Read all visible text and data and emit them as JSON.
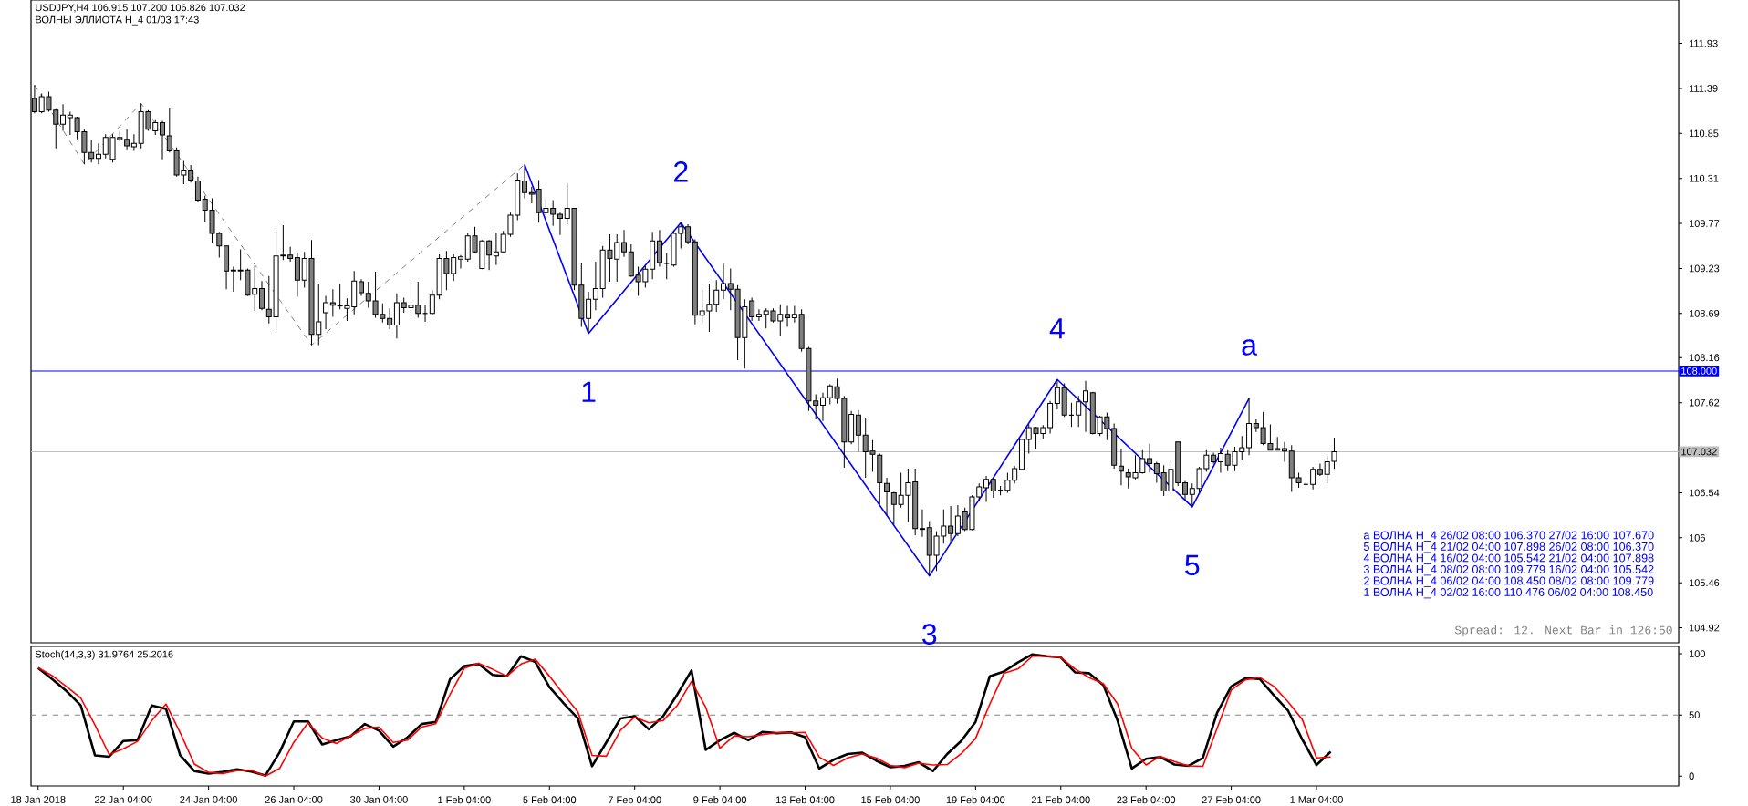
{
  "chart_data": [
    {
      "type": "candlestick",
      "title": "USDJPY,H4  106.915 107.200 106.826 107.032",
      "subtitle": "ВОЛНЫ ЭЛЛИОТА H_4 01/03 17:43",
      "categories": [
        null,
        null,
        null,
        null,
        null,
        null,
        null,
        null,
        null,
        null,
        null,
        null,
        null,
        null,
        null,
        null,
        null,
        null,
        null,
        null,
        null,
        null,
        null,
        null,
        null,
        null,
        null,
        null,
        null,
        null,
        null,
        null,
        null,
        null,
        null,
        null,
        null,
        null,
        null,
        null,
        null,
        null,
        null,
        null,
        null,
        null,
        null,
        null,
        null,
        null,
        null,
        null,
        null,
        null,
        null,
        null,
        null,
        null,
        null,
        null,
        null,
        null,
        null,
        null,
        null,
        null,
        null,
        null,
        null,
        null,
        null,
        null,
        null,
        null,
        null,
        null,
        null,
        null,
        null,
        null,
        null,
        null,
        null,
        null,
        null,
        null,
        null,
        null,
        null,
        null,
        null,
        null,
        null,
        null,
        null,
        null,
        null,
        null,
        null,
        null,
        null,
        null,
        null,
        null,
        null,
        null,
        null,
        null,
        null,
        null,
        null,
        null,
        null,
        null,
        null,
        null,
        null,
        null,
        null,
        null,
        null,
        null,
        null,
        null,
        null,
        null,
        null,
        null,
        null,
        null,
        null,
        null,
        null,
        null,
        null,
        null,
        null,
        null,
        null,
        null,
        null,
        null,
        null,
        null,
        null,
        null,
        null,
        null,
        null,
        null,
        null,
        null,
        null,
        null,
        null,
        null,
        null,
        null,
        null,
        null,
        null,
        null,
        null,
        null,
        null,
        null,
        null,
        null,
        null,
        null,
        null,
        null,
        null,
        null,
        null,
        null,
        null,
        null,
        null,
        null,
        null,
        null,
        null,
        null,
        null,
        null,
        null,
        null,
        null,
        null,
        null,
        null,
        null,
        null,
        null,
        null,
        null,
        null,
        null,
        null,
        null,
        null,
        null,
        null,
        null,
        null,
        null,
        null,
        null,
        null,
        null,
        null,
        null,
        null,
        null,
        null,
        null,
        null,
        null,
        null,
        null,
        null,
        null,
        null,
        null,
        null,
        null,
        null,
        null,
        null,
        null,
        null
      ],
      "ohlc": [
        [
          111.27,
          111.43,
          111.09,
          111.11
        ],
        [
          111.11,
          111.33,
          111.09,
          111.29
        ],
        [
          111.29,
          111.35,
          111.11,
          111.13
        ],
        [
          111.13,
          111.15,
          110.67,
          110.96
        ],
        [
          110.96,
          111.2,
          110.88,
          111.07
        ],
        [
          111.04,
          111.11,
          110.83,
          111.07
        ],
        [
          111.04,
          111.05,
          110.78,
          110.87
        ],
        [
          110.87,
          110.9,
          110.48,
          110.62
        ],
        [
          110.62,
          110.77,
          110.5,
          110.55
        ],
        [
          110.55,
          110.73,
          110.48,
          110.6
        ],
        [
          110.6,
          110.84,
          110.55,
          110.8
        ],
        [
          110.54,
          110.84,
          110.5,
          110.8
        ],
        [
          110.8,
          110.88,
          110.75,
          110.77
        ],
        [
          110.78,
          110.9,
          110.66,
          110.7
        ],
        [
          110.69,
          110.84,
          110.64,
          110.73
        ],
        [
          110.73,
          111.21,
          110.67,
          111.11
        ],
        [
          111.11,
          111.13,
          110.88,
          110.9
        ],
        [
          110.88,
          111.01,
          110.83,
          110.98
        ],
        [
          110.98,
          111.0,
          110.54,
          110.83
        ],
        [
          110.82,
          111.16,
          110.62,
          110.64
        ],
        [
          110.64,
          110.68,
          110.33,
          110.35
        ],
        [
          110.35,
          110.52,
          110.24,
          110.41
        ],
        [
          110.41,
          110.47,
          110.26,
          110.29
        ],
        [
          110.28,
          110.33,
          110.03,
          110.05
        ],
        [
          110.06,
          110.1,
          109.79,
          109.93
        ],
        [
          109.93,
          110.07,
          109.53,
          109.65
        ],
        [
          109.65,
          109.67,
          109.36,
          109.5
        ],
        [
          109.5,
          109.5,
          108.98,
          109.2
        ],
        [
          109.2,
          109.25,
          108.95,
          109.21
        ],
        [
          109.21,
          109.46,
          109.09,
          109.2
        ],
        [
          109.21,
          109.23,
          108.9,
          108.91
        ],
        [
          108.92,
          109.26,
          108.72,
          108.99
        ],
        [
          108.99,
          109.08,
          108.73,
          108.75
        ],
        [
          108.74,
          109.14,
          108.57,
          108.65
        ],
        [
          108.65,
          109.69,
          108.48,
          109.38
        ],
        [
          109.38,
          109.75,
          109.33,
          109.39
        ],
        [
          109.39,
          109.49,
          109.31,
          109.35
        ],
        [
          109.36,
          109.42,
          108.89,
          109.09
        ],
        [
          109.09,
          109.43,
          109.0,
          109.35
        ],
        [
          109.35,
          109.57,
          108.31,
          108.44
        ],
        [
          108.44,
          109.05,
          108.31,
          108.59
        ],
        [
          108.7,
          108.9,
          108.5,
          108.82
        ],
        [
          108.82,
          108.98,
          108.65,
          108.79
        ],
        [
          108.79,
          109.04,
          108.74,
          108.78
        ],
        [
          108.75,
          108.87,
          108.6,
          108.78
        ],
        [
          108.77,
          109.2,
          108.68,
          109.08
        ],
        [
          109.07,
          109.1,
          108.9,
          108.94
        ],
        [
          108.93,
          109.07,
          108.76,
          108.84
        ],
        [
          108.84,
          109.19,
          108.64,
          108.68
        ],
        [
          108.68,
          108.81,
          108.58,
          108.63
        ],
        [
          108.63,
          108.75,
          108.5,
          108.55
        ],
        [
          108.55,
          108.93,
          108.39,
          108.82
        ],
        [
          108.82,
          108.88,
          108.7,
          108.76
        ],
        [
          108.76,
          109.07,
          108.68,
          108.79
        ],
        [
          108.79,
          109.07,
          108.64,
          108.69
        ],
        [
          108.69,
          108.79,
          108.59,
          108.69
        ],
        [
          108.69,
          108.97,
          108.67,
          108.91
        ],
        [
          108.91,
          109.4,
          108.86,
          109.35
        ],
        [
          109.35,
          109.44,
          108.97,
          109.17
        ],
        [
          109.17,
          109.4,
          109.08,
          109.36
        ],
        [
          109.34,
          109.39,
          109.23,
          109.37
        ],
        [
          109.34,
          109.66,
          109.31,
          109.62
        ],
        [
          109.62,
          109.73,
          109.41,
          109.43
        ],
        [
          109.23,
          109.57,
          109.22,
          109.56
        ],
        [
          109.56,
          109.57,
          109.21,
          109.39
        ],
        [
          109.38,
          109.66,
          109.27,
          109.43
        ],
        [
          109.43,
          109.68,
          109.41,
          109.64
        ],
        [
          109.64,
          109.9,
          109.61,
          109.87
        ],
        [
          109.87,
          110.37,
          109.81,
          110.29
        ],
        [
          110.28,
          110.476,
          110.07,
          110.14
        ],
        [
          110.14,
          110.21,
          110.01,
          110.12
        ],
        [
          110.18,
          110.29,
          109.78,
          109.9
        ],
        [
          109.9,
          110.07,
          109.86,
          109.95
        ],
        [
          109.95,
          110.05,
          109.74,
          109.88
        ],
        [
          109.88,
          109.9,
          109.63,
          109.83
        ],
        [
          109.83,
          110.25,
          109.76,
          109.95
        ],
        [
          109.95,
          109.95,
          108.97,
          109.03
        ],
        [
          109.03,
          109.29,
          108.53,
          108.63
        ],
        [
          108.63,
          108.95,
          108.45,
          108.86
        ],
        [
          108.86,
          109.31,
          108.73,
          108.99
        ],
        [
          108.99,
          109.5,
          108.88,
          109.45
        ],
        [
          109.45,
          109.64,
          109.07,
          109.35
        ],
        [
          109.34,
          109.64,
          109.07,
          109.54
        ],
        [
          109.54,
          109.69,
          109.37,
          109.43
        ],
        [
          109.43,
          109.52,
          109.13,
          109.14
        ],
        [
          109.15,
          109.25,
          108.9,
          109.07
        ],
        [
          109.07,
          109.26,
          109.0,
          109.22
        ],
        [
          109.22,
          109.67,
          109.1,
          109.56
        ],
        [
          109.56,
          109.69,
          109.25,
          109.3
        ],
        [
          109.29,
          109.41,
          109.1,
          109.29
        ],
        [
          109.27,
          109.68,
          109.25,
          109.65
        ],
        [
          109.65,
          109.779,
          109.47,
          109.73
        ],
        [
          109.73,
          109.76,
          109.52,
          109.55
        ],
        [
          109.55,
          109.58,
          108.56,
          108.67
        ],
        [
          108.67,
          108.98,
          108.58,
          108.72
        ],
        [
          108.72,
          109.05,
          108.47,
          108.8
        ],
        [
          108.8,
          109.09,
          108.71,
          108.97
        ],
        [
          108.97,
          109.29,
          108.86,
          109.05
        ],
        [
          109.05,
          109.23,
          108.73,
          108.98
        ],
        [
          108.98,
          109.03,
          108.13,
          108.4
        ],
        [
          108.4,
          108.86,
          108.03,
          108.77
        ],
        [
          108.84,
          108.88,
          108.6,
          108.65
        ],
        [
          108.65,
          108.74,
          108.6,
          108.68
        ],
        [
          108.68,
          108.75,
          108.51,
          108.72
        ],
        [
          108.72,
          108.75,
          108.58,
          108.6
        ],
        [
          108.6,
          108.8,
          108.42,
          108.68
        ],
        [
          108.68,
          108.78,
          108.53,
          108.64
        ],
        [
          108.64,
          108.78,
          108.58,
          108.68
        ],
        [
          108.68,
          108.74,
          108.23,
          108.27
        ],
        [
          108.27,
          108.29,
          107.52,
          107.64
        ],
        [
          107.64,
          107.72,
          107.42,
          107.59
        ],
        [
          107.59,
          107.74,
          107.4,
          107.68
        ],
        [
          107.68,
          107.84,
          107.6,
          107.82
        ],
        [
          107.81,
          107.91,
          107.61,
          107.67
        ],
        [
          107.67,
          107.7,
          106.84,
          107.15
        ],
        [
          107.15,
          107.52,
          107.12,
          107.48
        ],
        [
          107.47,
          107.53,
          107.03,
          107.23
        ],
        [
          107.23,
          107.44,
          106.72,
          107.03
        ],
        [
          107.04,
          107.17,
          106.79,
          107.0
        ],
        [
          106.99,
          107.01,
          106.4,
          106.66
        ],
        [
          106.65,
          106.72,
          106.27,
          106.55
        ],
        [
          106.54,
          106.55,
          106.16,
          106.4
        ],
        [
          106.4,
          106.78,
          106.36,
          106.51
        ],
        [
          106.51,
          106.83,
          106.19,
          106.66
        ],
        [
          106.67,
          106.83,
          106.03,
          106.11
        ],
        [
          106.11,
          106.34,
          106.01,
          106.1
        ],
        [
          106.12,
          106.2,
          105.542,
          105.79
        ],
        [
          105.79,
          106.08,
          105.6,
          106.02
        ],
        [
          106.02,
          106.34,
          105.93,
          106.14
        ],
        [
          106.14,
          106.38,
          105.95,
          106.05
        ],
        [
          106.05,
          106.39,
          106.02,
          106.26
        ],
        [
          106.31,
          106.36,
          106.08,
          106.1
        ],
        [
          106.1,
          106.51,
          106.09,
          106.49
        ],
        [
          106.49,
          106.65,
          106.45,
          106.61
        ],
        [
          106.6,
          106.74,
          106.43,
          106.7
        ],
        [
          106.7,
          106.71,
          106.48,
          106.56
        ],
        [
          106.57,
          106.62,
          106.51,
          106.57
        ],
        [
          106.57,
          106.78,
          106.54,
          106.69
        ],
        [
          106.69,
          106.86,
          106.65,
          106.83
        ],
        [
          106.82,
          107.19,
          106.81,
          107.18
        ],
        [
          107.18,
          107.36,
          107.01,
          107.32
        ],
        [
          107.32,
          107.33,
          107.06,
          107.25
        ],
        [
          107.25,
          107.35,
          107.18,
          107.32
        ],
        [
          107.32,
          107.64,
          107.25,
          107.61
        ],
        [
          107.61,
          107.898,
          107.54,
          107.8
        ],
        [
          107.8,
          107.85,
          107.45,
          107.47
        ],
        [
          107.47,
          107.62,
          107.33,
          107.47
        ],
        [
          107.47,
          107.7,
          107.33,
          107.63
        ],
        [
          107.63,
          107.88,
          107.27,
          107.76
        ],
        [
          107.74,
          107.75,
          107.24,
          107.25
        ],
        [
          107.25,
          107.46,
          107.22,
          107.45
        ],
        [
          107.45,
          107.5,
          107.17,
          107.31
        ],
        [
          107.31,
          107.37,
          106.83,
          106.87
        ],
        [
          106.86,
          107.07,
          106.63,
          106.8
        ],
        [
          106.78,
          106.83,
          106.59,
          106.73
        ],
        [
          106.72,
          106.99,
          106.7,
          106.78
        ],
        [
          106.78,
          107.05,
          106.77,
          106.95
        ],
        [
          106.95,
          107.13,
          106.78,
          106.89
        ],
        [
          106.89,
          106.91,
          106.66,
          106.77
        ],
        [
          106.78,
          106.87,
          106.5,
          106.56
        ],
        [
          106.56,
          106.93,
          106.54,
          106.82
        ],
        [
          107.15,
          107.15,
          106.62,
          106.66
        ],
        [
          106.66,
          106.68,
          106.44,
          106.52
        ],
        [
          106.52,
          106.65,
          106.37,
          106.59
        ],
        [
          106.59,
          106.85,
          106.54,
          106.83
        ],
        [
          106.83,
          107.05,
          106.79,
          106.99
        ],
        [
          106.99,
          107.02,
          106.89,
          106.91
        ],
        [
          106.91,
          107.08,
          106.78,
          107.01
        ],
        [
          107.0,
          107.05,
          106.8,
          106.87
        ],
        [
          106.87,
          107.09,
          106.8,
          107.03
        ],
        [
          107.03,
          107.22,
          106.93,
          107.08
        ],
        [
          107.08,
          107.67,
          106.99,
          107.37
        ],
        [
          107.37,
          107.42,
          107.27,
          107.32
        ],
        [
          107.32,
          107.51,
          107.11,
          107.13
        ],
        [
          107.13,
          107.36,
          107.05,
          107.05
        ],
        [
          107.05,
          107.21,
          107.05,
          107.07
        ],
        [
          107.07,
          107.15,
          106.91,
          107.04
        ],
        [
          107.04,
          107.11,
          106.55,
          106.72
        ],
        [
          106.72,
          106.78,
          106.6,
          106.66
        ],
        [
          106.64,
          106.66,
          106.63,
          106.64
        ],
        [
          106.64,
          106.85,
          106.58,
          106.82
        ],
        [
          106.82,
          106.89,
          106.74,
          106.76
        ],
        [
          106.76,
          106.98,
          106.65,
          106.91
        ],
        [
          106.915,
          107.2,
          106.826,
          107.032
        ],
        null,
        null,
        null,
        null,
        null,
        null,
        null,
        null,
        null,
        null,
        null,
        null,
        null,
        null,
        null,
        null,
        null,
        null,
        null,
        null,
        null,
        null,
        null,
        null,
        null,
        null,
        null,
        null,
        null,
        null,
        null,
        null,
        null,
        null,
        null,
        null,
        null,
        null,
        null,
        null,
        null,
        null,
        null,
        null,
        null,
        null,
        null,
        null
      ],
      "series": [
        {
          "type": "line",
          "color": "#0000ff",
          "values": [
            null,
            null,
            null,
            null,
            null,
            null,
            null,
            null,
            null,
            null,
            null,
            null,
            null,
            null,
            null,
            null,
            null,
            null,
            null,
            null,
            null,
            null,
            null,
            null,
            null,
            null,
            null,
            null,
            null,
            null,
            null,
            null,
            null,
            null,
            null,
            null,
            null,
            null,
            null,
            null,
            null,
            null,
            null,
            null,
            null,
            null,
            null,
            null,
            null,
            null,
            null,
            null,
            null,
            null,
            null,
            null,
            null,
            null,
            null,
            null,
            null,
            null,
            null,
            null,
            null,
            null,
            null,
            null,
            null,
            110.476,
            null,
            null,
            null,
            null,
            null,
            null,
            null,
            null,
            108.45,
            null,
            null,
            null,
            null,
            null,
            null,
            null,
            null,
            null,
            null,
            null,
            null,
            109.779,
            null,
            null,
            null,
            null,
            null,
            null,
            null,
            null,
            null,
            null,
            null,
            null,
            null,
            null,
            null,
            null,
            null,
            null,
            null,
            null,
            null,
            null,
            null,
            null,
            null,
            null,
            null,
            null,
            null,
            null,
            null,
            null,
            null,
            null,
            105.542,
            null,
            null,
            null,
            null,
            null,
            null,
            null,
            null,
            null,
            null,
            null,
            null,
            null,
            null,
            null,
            null,
            null,
            107.898,
            null,
            null,
            null,
            null,
            null,
            null,
            null,
            null,
            null,
            null,
            null,
            null,
            null,
            null,
            null,
            null,
            null,
            null,
            106.37,
            null,
            null,
            null,
            null,
            null,
            null,
            null,
            107.67,
            null,
            null,
            null,
            null,
            null,
            null,
            null,
            null,
            null,
            null,
            null,
            null,
            null,
            null,
            null,
            null,
            null,
            null,
            null,
            null,
            null,
            null,
            null,
            null,
            null,
            null,
            null,
            null,
            null,
            null,
            null,
            null,
            null,
            null,
            null,
            null,
            null,
            null,
            null,
            null,
            null,
            null,
            null,
            null,
            null,
            null,
            null,
            null,
            null,
            null,
            null,
            null,
            null,
            null,
            null,
            null,
            null,
            null,
            null,
            null
          ]
        },
        {
          "type": "line",
          "color": "#707070",
          "line_style": "dashed",
          "values": [
            111.43,
            null,
            null,
            null,
            null,
            null,
            null,
            110.48,
            null,
            null,
            null,
            null,
            null,
            null,
            null,
            111.21,
            null,
            null,
            null,
            null,
            null,
            null,
            null,
            null,
            null,
            null,
            null,
            null,
            null,
            null,
            null,
            null,
            null,
            null,
            null,
            null,
            null,
            null,
            null,
            108.31,
            null,
            null,
            null,
            null,
            null,
            null,
            null,
            null,
            null,
            null,
            null,
            null,
            null,
            null,
            null,
            null,
            null,
            null,
            null,
            null,
            null,
            null,
            null,
            null,
            null,
            null,
            null,
            null,
            null,
            110.476,
            null,
            null,
            null,
            null,
            null,
            null,
            null,
            null,
            null,
            null,
            null,
            null,
            null,
            null,
            null,
            null,
            null,
            null,
            null,
            null,
            null,
            null,
            null,
            null,
            null,
            null,
            null,
            null,
            null,
            null,
            null,
            null,
            null,
            null,
            null,
            null,
            null,
            null,
            null,
            null,
            null,
            null,
            null,
            null,
            null,
            null,
            null,
            null,
            null,
            null,
            null,
            null,
            null,
            null,
            null,
            null,
            null,
            null,
            null,
            null,
            null,
            null,
            null,
            null,
            null,
            null,
            null,
            null,
            null,
            null,
            null,
            null,
            null,
            null,
            null,
            null,
            null,
            null,
            null,
            null,
            null,
            null,
            null,
            null,
            null,
            null,
            null,
            null,
            null,
            null,
            null,
            null,
            null,
            null,
            null,
            null,
            null,
            null,
            null,
            null,
            null,
            null,
            null,
            null,
            null,
            null,
            null,
            null,
            null,
            null,
            null,
            null,
            null,
            null,
            null,
            null,
            null,
            null,
            null,
            null,
            null,
            null,
            null,
            null,
            null,
            null,
            null,
            null,
            null,
            null,
            null,
            null,
            null,
            null,
            null,
            null,
            null,
            null,
            null,
            null,
            null,
            null,
            null,
            null,
            null,
            null,
            null,
            null,
            null,
            null,
            null,
            null,
            null,
            null,
            null,
            null,
            null,
            null,
            null,
            null,
            null,
            null
          ]
        }
      ],
      "ylim": [
        104.74,
        112.45
      ],
      "yticks": [
        104.92,
        105.46,
        106,
        106.54,
        {
          "value": 107.08,
          "label": null
        },
        107.62,
        108.16,
        108.69,
        109.23,
        109.77,
        110.31,
        110.85,
        111.39,
        111.93
      ],
      "ref_lines": [
        {
          "axis": "y",
          "value": 108.0,
          "label": "108.000",
          "color": "#0000ff"
        },
        {
          "axis": "y",
          "value": 107.032,
          "label": "107.032",
          "color": "#c0c0c0"
        }
      ],
      "annotations": [
        "1",
        "2",
        "3",
        "4",
        "5",
        "a",
        "a ВОЛНА H_4 26/02 08:00 106.370 27/02 16:00 107.670",
        "5 ВОЛНА H_4 21/02 04:00 107.898 26/02 08:00 106.370",
        "4 ВОЛНА H_4 16/02 04:00 105.542 21/02 04:00 107.898",
        "3 ВОЛНА H_4 08/02 08:00 109.779 16/02 04:00 105.542",
        "2 ВОЛНА H_4 06/02 04:00 108.450 08/02 08:00 109.779",
        "1 ВОЛНА H_4 02/02 16:00 110.476 06/02 04:00 108.450",
        "Spread: 12. Next Bar in 126:50"
      ],
      "tick_labels": "y"
    },
    {
      "type": "line",
      "title": "Stoch(14,3,3) 31.9764 25.2016",
      "categories": [
        "18 Jan 2018",
        null,
        null,
        null,
        null,
        null,
        "22 Jan 04:00",
        null,
        null,
        null,
        null,
        null,
        "24 Jan 04:00",
        null,
        null,
        null,
        null,
        null,
        "26 Jan 04:00",
        null,
        null,
        null,
        null,
        null,
        "30 Jan 04:00",
        null,
        null,
        null,
        null,
        null,
        "1 Feb 04:00",
        null,
        null,
        null,
        null,
        null,
        "5 Feb 04:00",
        null,
        null,
        null,
        null,
        null,
        "7 Feb 04:00",
        null,
        null,
        null,
        null,
        null,
        "9 Feb 04:00",
        null,
        null,
        null,
        null,
        null,
        "13 Feb 04:00",
        null,
        null,
        null,
        null,
        null,
        "15 Feb 04:00",
        null,
        null,
        null,
        null,
        null,
        "19 Feb 04:00",
        null,
        null,
        null,
        null,
        null,
        "21 Feb 04:00",
        null,
        null,
        null,
        null,
        null,
        "23 Feb 04:00",
        null,
        null,
        null,
        null,
        null,
        "27 Feb 04:00",
        null,
        null,
        null,
        null,
        null,
        "1 Mar 04:00",
        null,
        null,
        null,
        null,
        null,
        null,
        null,
        null,
        null,
        null,
        null,
        null,
        null,
        null,
        null,
        null,
        null,
        null,
        null,
        null,
        null,
        null,
        null,
        null,
        null
      ],
      "series": [
        {
          "color": "#000000",
          "values": [
            88.4,
            79.2,
            69.5,
            57.8,
            17.0,
            15.9,
            28.7,
            29.4,
            57.8,
            55.0,
            17.0,
            4.2,
            2.1,
            3.5,
            5.6,
            3.8,
            0.5,
            19.5,
            44.7,
            44.7,
            25.9,
            29.4,
            32.6,
            42.6,
            37.2,
            24.1,
            31.7,
            42.6,
            44.3,
            79.2,
            89.9,
            91.7,
            82.7,
            81.6,
            98.0,
            93.3,
            72.8,
            59.6,
            47.2,
            8.1,
            27.6,
            47.2,
            49.0,
            38.3,
            49.0,
            66.7,
            86.3,
            21.4,
            29.3,
            35.4,
            29.3,
            36.2,
            35.1,
            35.8,
            31.8,
            6.2,
            13.4,
            18.1,
            19.2,
            12.7,
            7.3,
            8.3,
            11.3,
            4.1,
            18.1,
            28.9,
            44.4,
            81.6,
            85.5,
            93.1,
            99.5,
            98,
            97,
            84.8,
            84.1,
            74.4,
            45.2,
            6.2,
            14.2,
            15.6,
            9.5,
            8.4,
            14.9,
            51.7,
            73.3,
            80.1,
            79.4,
            66.1,
            53.5,
            30.0,
            9.1,
            19.9,
            null,
            null,
            null,
            null,
            null,
            null,
            null,
            null,
            null,
            null,
            null,
            null,
            null,
            null,
            null,
            null,
            null,
            null,
            null,
            null,
            null,
            null,
            null,
            null
          ]
        },
        {
          "color": "#ff0000",
          "values": [
            88.7,
            82.0,
            73.1,
            63.9,
            41.9,
            17.7,
            22.3,
            28.4,
            45.4,
            58.9,
            35.5,
            9.9,
            3.1,
            2.1,
            4.5,
            4.9,
            0,
            6.3,
            27.6,
            43.6,
            31.2,
            26.6,
            33.0,
            39.0,
            40.1,
            27.6,
            29.4,
            40.1,
            42.9,
            66.7,
            88.1,
            92.3,
            87.3,
            81.7,
            91.6,
            95.5,
            81.7,
            66.7,
            52.5,
            17.0,
            16.3,
            37.6,
            48.3,
            43.6,
            45.4,
            57.8,
            77.4,
            56.3,
            22.8,
            32.9,
            32.2,
            34.0,
            35.4,
            35.4,
            35.8,
            15.6,
            8.8,
            14.9,
            18.1,
            14.9,
            8.8,
            7.0,
            10.6,
            9.1,
            9.5,
            18.5,
            30.8,
            58.9,
            84.1,
            87.7,
            98,
            98,
            97,
            87.7,
            80.5,
            75.5,
            58.9,
            22.8,
            9.1,
            16.3,
            12.0,
            8.4,
            8.0,
            39.0,
            70.4,
            78.7,
            80.8,
            73.3,
            60.7,
            46.3,
            14.9,
            15.6,
            null,
            null,
            null,
            null,
            null,
            null,
            null,
            null,
            null,
            null,
            null,
            null,
            null,
            null,
            null,
            null,
            null,
            null,
            null,
            null,
            null,
            null,
            null,
            null
          ]
        }
      ],
      "ylim": [
        -8,
        106
      ],
      "yticks": [
        0,
        50,
        100
      ],
      "ref_lines": [
        {
          "axis": "y",
          "value": 50,
          "color": "#808080",
          "line_style": "dashed"
        }
      ]
    }
  ]
}
